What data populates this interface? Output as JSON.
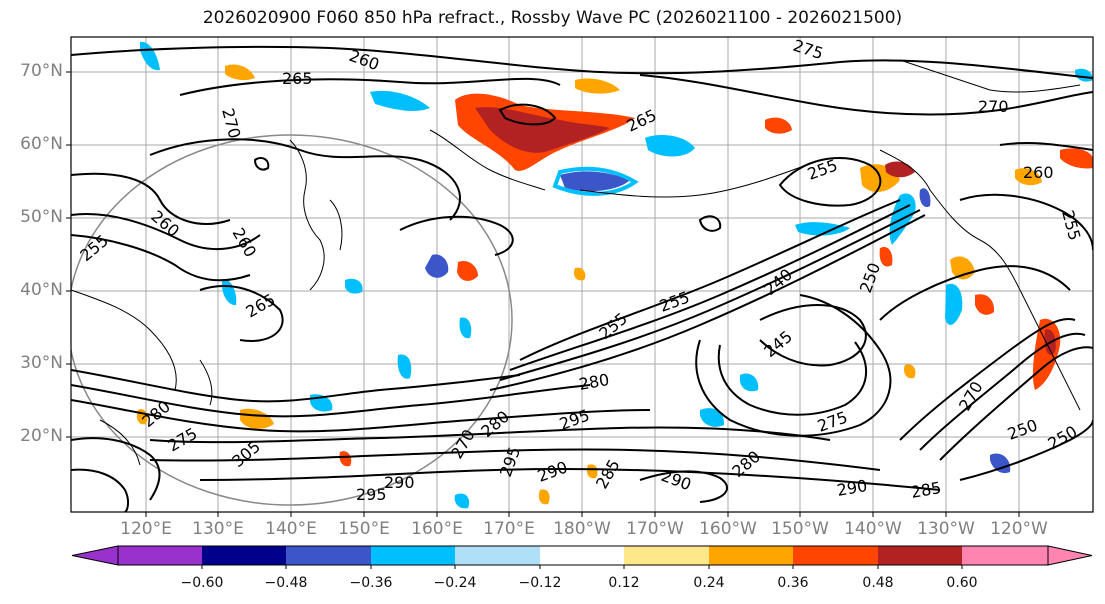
{
  "title": "2026020900 F060 850 hPa refract., Rossby Wave PC (2026021100 - 2026021500)",
  "map": {
    "lat_labels": [
      "70°N",
      "60°N",
      "50°N",
      "40°N",
      "30°N",
      "20°N"
    ],
    "lon_labels": [
      "120°E",
      "130°E",
      "140°E",
      "150°E",
      "160°E",
      "170°E",
      "180°W",
      "170°W",
      "160°W",
      "150°W",
      "140°W",
      "130°W",
      "120°W"
    ],
    "contour_labels": [
      {
        "text": "260"
      },
      {
        "text": "275"
      },
      {
        "text": "265"
      },
      {
        "text": "270"
      },
      {
        "text": "270"
      },
      {
        "text": "265"
      },
      {
        "text": "255"
      },
      {
        "text": "260"
      },
      {
        "text": "260"
      },
      {
        "text": "260"
      },
      {
        "text": "255"
      },
      {
        "text": "255"
      },
      {
        "text": "250"
      },
      {
        "text": "240"
      },
      {
        "text": "245"
      },
      {
        "text": "255"
      },
      {
        "text": "280"
      },
      {
        "text": "295"
      },
      {
        "text": "275"
      },
      {
        "text": "270"
      },
      {
        "text": "290"
      },
      {
        "text": "285"
      },
      {
        "text": "290"
      },
      {
        "text": "295"
      },
      {
        "text": "280"
      },
      {
        "text": "290"
      },
      {
        "text": "285"
      },
      {
        "text": "250"
      },
      {
        "text": "270"
      },
      {
        "text": "280"
      },
      {
        "text": "305"
      },
      {
        "text": "280"
      },
      {
        "text": "275"
      },
      {
        "text": "290"
      },
      {
        "text": "295"
      },
      {
        "text": "265"
      },
      {
        "text": "255"
      },
      {
        "text": "250"
      }
    ]
  },
  "colorbar": {
    "colors": [
      "#9932cc",
      "#00008b",
      "#3a56c8",
      "#00bfff",
      "#b0e0f8",
      "#ffffff",
      "#ffe88a",
      "#ffa500",
      "#ff4500",
      "#b22222",
      "#ff85b0"
    ],
    "tick_labels": [
      "−0.60",
      "−0.48",
      "−0.36",
      "−0.24",
      "−0.12",
      "0.12",
      "0.24",
      "0.36",
      "0.48",
      "0.60"
    ]
  }
}
